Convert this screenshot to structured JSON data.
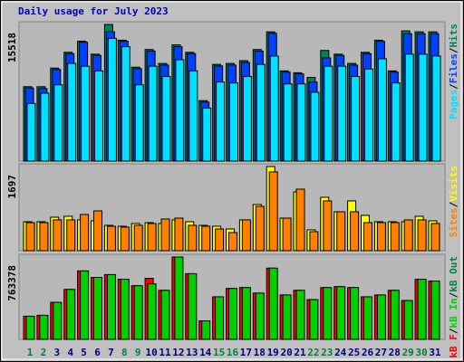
{
  "chart_data": [
    {
      "type": "bar",
      "title": "Daily usage for July 2023",
      "ylim": [
        0,
        15518
      ],
      "legend_reverse": true,
      "series": [
        {
          "name": "Hits",
          "color": "#00805c",
          "values": [
            8448,
            8448,
            10560,
            12355,
            13622,
            12144,
            15518,
            13728,
            10666,
            12672,
            11088,
            13200,
            12355,
            6864,
            10982,
            11088,
            11405,
            12672,
            14678,
            10243,
            10032,
            9504,
            12566,
            12144,
            11088,
            12355,
            13728,
            10243,
            14784,
            14678,
            14678
          ]
        },
        {
          "name": "Files",
          "color": "#0040ff",
          "values": [
            8300,
            8237,
            10400,
            12200,
            13500,
            12000,
            14678,
            13600,
            10500,
            12500,
            10900,
            13000,
            12200,
            6700,
            10800,
            10900,
            11200,
            12500,
            14500,
            10100,
            9900,
            8976,
            11722,
            12000,
            10900,
            12200,
            13600,
            10100,
            14467,
            14467,
            14467
          ]
        },
        {
          "name": "Pages",
          "color": "#00e0ff",
          "values": [
            6547,
            7709,
            8659,
            11088,
            10771,
            10243,
            13939,
            12989,
            8659,
            10771,
            9610,
            11510,
            10243,
            6019,
            8976,
            8870,
            9610,
            10982,
            11933,
            8765,
            8765,
            7814,
            10771,
            10771,
            9610,
            10454,
            11616,
            8870,
            12144,
            12144,
            11933
          ]
        }
      ]
    },
    {
      "type": "bar",
      "ylim": [
        0,
        1697
      ],
      "legend_reverse": true,
      "series": [
        {
          "name": "Visits",
          "color": "#ffff00",
          "values": [
            584,
            584,
            675,
            694,
            621,
            602,
            511,
            493,
            548,
            566,
            548,
            621,
            584,
            511,
            493,
            438,
            621,
            931,
            1697,
            657,
            1186,
            420,
            1077,
            785,
            1004,
            712,
            584,
            584,
            584,
            694,
            602
          ]
        },
        {
          "name": "Sites",
          "color": "#ff8000",
          "values": [
            566,
            566,
            621,
            621,
            730,
            803,
            493,
            475,
            511,
            548,
            639,
            657,
            511,
            493,
            438,
            365,
            621,
            894,
            1588,
            657,
            1241,
            383,
            1004,
            785,
            785,
            566,
            566,
            566,
            621,
            621,
            548
          ]
        }
      ]
    },
    {
      "type": "bar",
      "ylim": [
        0,
        763378
      ],
      "legend_reverse": false,
      "categories": [
        "1",
        "2",
        "3",
        "4",
        "5",
        "6",
        "7",
        "8",
        "9",
        "10",
        "11",
        "12",
        "13",
        "14",
        "15",
        "16",
        "17",
        "18",
        "19",
        "20",
        "21",
        "22",
        "23",
        "24",
        "25",
        "26",
        "27",
        "28",
        "29",
        "30",
        "31"
      ],
      "category_colors": [
        "#008040",
        "#008040",
        "#000080",
        "#000080",
        "#000080",
        "#000080",
        "#000080",
        "#008040",
        "#008040",
        "#000080",
        "#000080",
        "#000080",
        "#000080",
        "#000080",
        "#008040",
        "#008040",
        "#000080",
        "#000080",
        "#000080",
        "#000080",
        "#000080",
        "#008040",
        "#008040",
        "#000080",
        "#000080",
        "#000080",
        "#000080",
        "#000080",
        "#008040",
        "#008040",
        "#000080"
      ],
      "series": [
        {
          "name": "kB F",
          "color": "#ff0000",
          "values": [
            214425,
            223002,
            343080,
            463158,
            634698,
            574659,
            600390,
            557505,
            497466,
            566082,
            454581,
            763378,
            608967,
            171540,
            394542,
            471735,
            480312,
            428850,
            660429,
            411696,
            454581,
            368811,
            480312,
            488889,
            480312,
            394542,
            411696,
            454581,
            360234,
            557505,
            540351
          ]
        },
        {
          "name": "kB In",
          "color": "#00d000",
          "values": [
            214425,
            223002,
            343080,
            463158,
            634698,
            574659,
            600390,
            557505,
            497466,
            514620,
            454581,
            763378,
            608967,
            171540,
            394542,
            471735,
            480312,
            428850,
            660429,
            411696,
            454581,
            368811,
            480312,
            488889,
            480312,
            394542,
            411696,
            454581,
            360234,
            557505,
            540351
          ]
        }
      ],
      "extra_legend": [
        {
          "name": "kB Out",
          "color": "#008040"
        }
      ]
    }
  ]
}
